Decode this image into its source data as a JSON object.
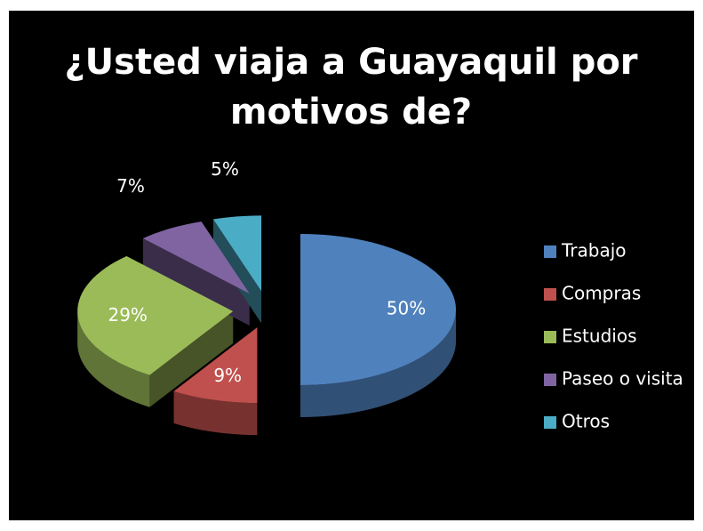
{
  "chart_data": {
    "type": "pie",
    "title": "¿Usted viaja a Guayaquil por motivos de?",
    "categories": [
      "Trabajo",
      "Compras",
      "Estudios",
      "Paseo o visita",
      "Otros"
    ],
    "values": [
      50,
      9,
      29,
      7,
      5
    ],
    "value_labels": [
      "50%",
      "9%",
      "29%",
      "7%",
      "5%"
    ],
    "colors": [
      "#4f81bd",
      "#c0504d",
      "#9bbb59",
      "#8064a2",
      "#4bacc6"
    ],
    "legend": "right"
  }
}
